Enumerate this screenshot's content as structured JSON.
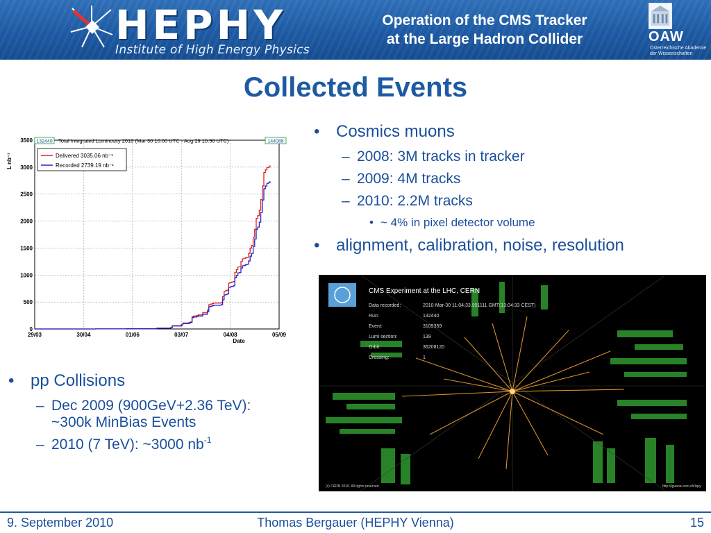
{
  "header": {
    "logo_text": "HEPHY",
    "logo_subtitle": "Institute of High Energy Physics",
    "talk_title_line1": "Operation of the CMS Tracker",
    "talk_title_line2": "at the Large Hadron Collider",
    "oaw_logo_text": "OAW",
    "oaw_subtitle_line1": "Österreichische Akademie",
    "oaw_subtitle_line2": "der Wissenschaften"
  },
  "slide_title": "Collected Events",
  "right_list": {
    "item1": "Cosmics muons",
    "item1_sub1": "2008: 3M tracks in tracker",
    "item1_sub2": "2009: 4M tracks",
    "item1_sub3": "2010: 2.2M tracks",
    "item1_sub3_sub1": "~ 4% in pixel detector volume",
    "item2": "alignment, calibration, noise, resolution"
  },
  "left_list": {
    "item1": "pp Collisions",
    "sub1_line1": "Dec 2009 (900GeV+2.36 TeV):",
    "sub1_line2": "~300k MinBias Events",
    "sub2": "2010 (7 TeV): ~3000 nb",
    "sub2_exponent": "-1"
  },
  "chart_data": {
    "type": "line",
    "title": "Total Integrated Luminosity 2010 (Mar 30 10:00 UTC - Aug 29 10:50 UTC)",
    "run_start_label": "132440",
    "run_end_label": "144088",
    "xlabel": "Date",
    "ylabel": "L nb⁻¹",
    "x_ticks": [
      "29/03",
      "30/04",
      "01/06",
      "03/07",
      "04/08",
      "05/09"
    ],
    "y_ticks": [
      0,
      500,
      1000,
      1500,
      2000,
      2500,
      3000,
      3500
    ],
    "ylim": [
      0,
      3500
    ],
    "x_day_range": [
      0,
      160
    ],
    "x_tick_days": [
      0,
      32,
      64,
      96,
      128,
      160
    ],
    "grid": true,
    "legend_position": "top-left",
    "series": [
      {
        "name": "Delivered 3035.06 nb⁻¹",
        "color": "#dd2222",
        "points": [
          [
            0,
            0
          ],
          [
            40,
            2
          ],
          [
            60,
            5
          ],
          [
            80,
            15
          ],
          [
            89,
            25
          ],
          [
            90,
            60
          ],
          [
            96,
            80
          ],
          [
            97,
            110
          ],
          [
            101,
            120
          ],
          [
            102,
            130
          ],
          [
            103,
            230
          ],
          [
            104,
            240
          ],
          [
            106,
            250
          ],
          [
            107,
            260
          ],
          [
            110,
            300
          ],
          [
            113,
            350
          ],
          [
            114,
            450
          ],
          [
            115,
            460
          ],
          [
            116,
            470
          ],
          [
            117,
            480
          ],
          [
            122,
            490
          ],
          [
            123,
            600
          ],
          [
            124,
            700
          ],
          [
            125,
            710
          ],
          [
            126,
            720
          ],
          [
            127,
            850
          ],
          [
            128,
            860
          ],
          [
            129,
            870
          ],
          [
            130,
            880
          ],
          [
            131,
            1050
          ],
          [
            132,
            1100
          ],
          [
            133,
            1150
          ],
          [
            134,
            1150
          ],
          [
            135,
            1250
          ],
          [
            136,
            1300
          ],
          [
            137,
            1310
          ],
          [
            138,
            1320
          ],
          [
            139,
            1325
          ],
          [
            140,
            1400
          ],
          [
            141,
            1500
          ],
          [
            142,
            1550
          ],
          [
            143,
            1700
          ],
          [
            144,
            1850
          ],
          [
            145,
            2050
          ],
          [
            146,
            2100
          ],
          [
            147,
            2200
          ],
          [
            148,
            2400
          ],
          [
            149,
            2650
          ],
          [
            150,
            2900
          ],
          [
            151,
            2950
          ],
          [
            152,
            2990
          ],
          [
            153,
            3000
          ],
          [
            154,
            3035
          ]
        ]
      },
      {
        "name": "Recorded 2739.19 nb⁻¹",
        "color": "#2222cc",
        "points": [
          [
            0,
            0
          ],
          [
            40,
            2
          ],
          [
            60,
            5
          ],
          [
            80,
            14
          ],
          [
            89,
            22
          ],
          [
            90,
            55
          ],
          [
            96,
            72
          ],
          [
            97,
            100
          ],
          [
            101,
            110
          ],
          [
            102,
            120
          ],
          [
            103,
            210
          ],
          [
            104,
            220
          ],
          [
            106,
            230
          ],
          [
            107,
            240
          ],
          [
            110,
            270
          ],
          [
            113,
            320
          ],
          [
            114,
            410
          ],
          [
            115,
            420
          ],
          [
            116,
            430
          ],
          [
            117,
            440
          ],
          [
            122,
            450
          ],
          [
            123,
            540
          ],
          [
            124,
            630
          ],
          [
            125,
            640
          ],
          [
            126,
            650
          ],
          [
            127,
            770
          ],
          [
            128,
            780
          ],
          [
            129,
            790
          ],
          [
            130,
            800
          ],
          [
            131,
            950
          ],
          [
            132,
            990
          ],
          [
            133,
            1040
          ],
          [
            134,
            1045
          ],
          [
            135,
            1130
          ],
          [
            136,
            1170
          ],
          [
            137,
            1180
          ],
          [
            138,
            1190
          ],
          [
            139,
            1200
          ],
          [
            140,
            1260
          ],
          [
            141,
            1350
          ],
          [
            142,
            1400
          ],
          [
            143,
            1530
          ],
          [
            144,
            1670
          ],
          [
            145,
            1850
          ],
          [
            146,
            1890
          ],
          [
            147,
            1980
          ],
          [
            148,
            2160
          ],
          [
            149,
            2390
          ],
          [
            150,
            2600
          ],
          [
            151,
            2650
          ],
          [
            152,
            2700
          ],
          [
            153,
            2710
          ],
          [
            154,
            2739
          ]
        ]
      }
    ]
  },
  "event_display": {
    "title": "CMS Experiment at the LHC, CERN",
    "rows": [
      {
        "label": "Data recorded:",
        "value": "2010-Mar-30 11:04:33.951111 GMT(13:04:33 CEST)"
      },
      {
        "label": "Run:",
        "value": "132440"
      },
      {
        "label": "Event:",
        "value": "3109359"
      },
      {
        "label": "Lumi section:",
        "value": "139"
      },
      {
        "label": "Orbit:",
        "value": "36208120"
      },
      {
        "label": "Crossing:",
        "value": "1"
      }
    ],
    "footer_left": "(c) CERN 2010. All rights reserved.",
    "footer_right": "http://iguana.cern.ch/ispy"
  },
  "footer": {
    "date": "9. September 2010",
    "author": "Thomas Bergauer (HEPHY Vienna)",
    "page": "15"
  }
}
